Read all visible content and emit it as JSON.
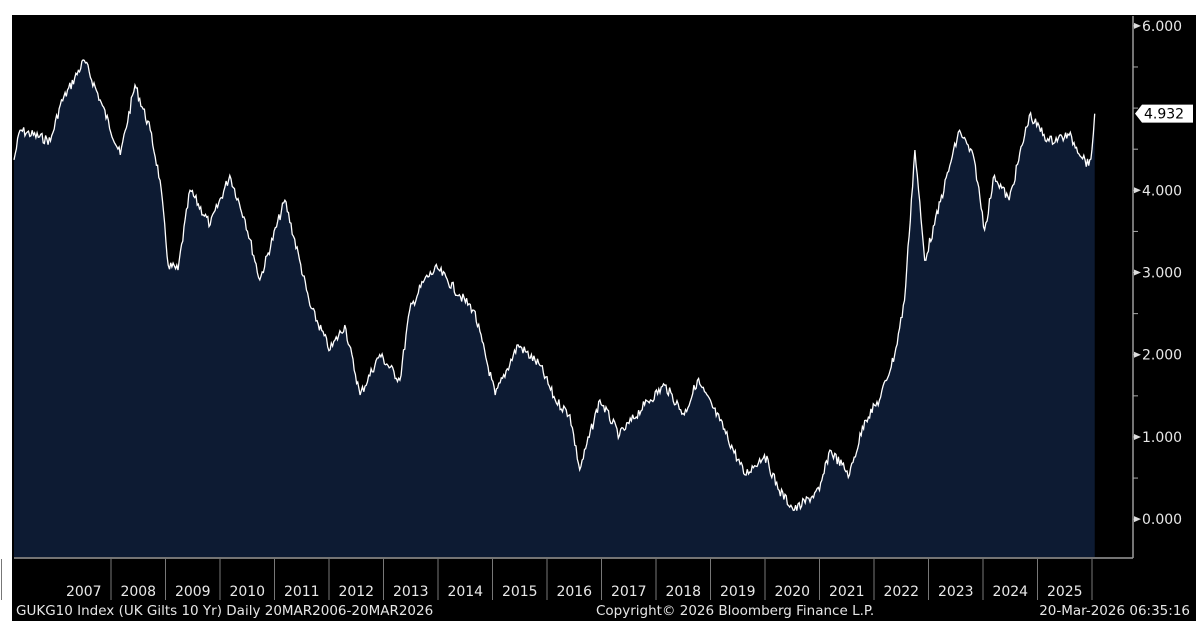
{
  "chart_data": {
    "type": "area",
    "title": "GUKG10 Index (UK Gilts 10 Yr)",
    "series": [
      {
        "name": "UK Gilts 10 Yr",
        "x": [
          2006.22,
          2006.33,
          2006.89,
          2007.07,
          2007.51,
          2007.8,
          2008.17,
          2008.44,
          2008.72,
          2008.9,
          2009.05,
          2009.23,
          2009.45,
          2009.82,
          2010.18,
          2010.46,
          2010.73,
          2011.19,
          2011.46,
          2011.65,
          2012.02,
          2012.29,
          2012.57,
          2012.93,
          2013.3,
          2013.48,
          2013.75,
          2013.99,
          2014.39,
          2014.66,
          2015.05,
          2015.47,
          2015.87,
          2016.15,
          2016.42,
          2016.6,
          2016.97,
          2017.33,
          2017.79,
          2018.16,
          2018.52,
          2018.76,
          2019.17,
          2019.63,
          2019.99,
          2020.26,
          2020.54,
          2021.0,
          2021.19,
          2021.55,
          2021.83,
          2022.1,
          2022.38,
          2022.56,
          2022.75,
          2022.93,
          2023.11,
          2023.39,
          2023.57,
          2023.84,
          2024.03,
          2024.21,
          2024.48,
          2024.85,
          2025.21,
          2025.58,
          2025.94,
          2026.0,
          2026.05
        ],
        "values": [
          4.37,
          4.73,
          4.6,
          5.04,
          5.58,
          5.1,
          4.43,
          5.28,
          4.73,
          4.12,
          3.09,
          3.03,
          4.0,
          3.58,
          4.18,
          3.64,
          2.91,
          3.88,
          3.15,
          2.6,
          2.06,
          2.36,
          1.51,
          2.0,
          1.69,
          2.54,
          2.91,
          3.05,
          2.73,
          2.54,
          1.51,
          2.12,
          1.87,
          1.45,
          1.27,
          0.6,
          1.45,
          1.02,
          1.39,
          1.63,
          1.27,
          1.69,
          1.2,
          0.54,
          0.78,
          0.35,
          0.11,
          0.35,
          0.84,
          0.54,
          1.2,
          1.45,
          2.0,
          2.66,
          4.49,
          3.15,
          3.58,
          4.3,
          4.73,
          4.37,
          3.52,
          4.18,
          3.88,
          4.91,
          4.6,
          4.67,
          4.3,
          4.5,
          4.932
        ]
      }
    ],
    "xlim": [
      2006.22,
      2026.22
    ],
    "ylim": [
      -0.46,
      6.12
    ],
    "yticks": [
      "0.000",
      "1.000",
      "2.000",
      "3.000",
      "4.000",
      "6.000"
    ],
    "ytick_values": [
      0,
      1,
      2,
      3,
      4,
      6
    ],
    "xticks": [
      "2007",
      "2008",
      "2009",
      "2010",
      "2011",
      "2012",
      "2013",
      "2014",
      "2015",
      "2016",
      "2017",
      "2018",
      "2019",
      "2020",
      "2021",
      "2022",
      "2023",
      "2024",
      "2025"
    ],
    "last_value": "4.932",
    "colors": {
      "fill": "#0d1b33",
      "line": "#ffffff",
      "bg": "#000000"
    }
  },
  "footer": {
    "left": "GUKG10 Index (UK Gilts 10 Yr) Daily 20MAR2006-20MAR2026",
    "middle": "Copyright© 2026 Bloomberg Finance L.P.",
    "right": "20-Mar-2026 06:35:16"
  }
}
